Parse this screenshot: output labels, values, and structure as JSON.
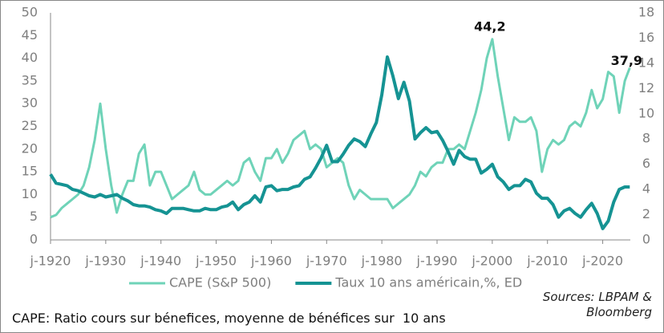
{
  "chart_data": {
    "type": "line",
    "x": [
      1920,
      1921,
      1922,
      1923,
      1924,
      1925,
      1926,
      1927,
      1928,
      1929,
      1930,
      1931,
      1932,
      1933,
      1934,
      1935,
      1936,
      1937,
      1938,
      1939,
      1940,
      1941,
      1942,
      1943,
      1944,
      1945,
      1946,
      1947,
      1948,
      1949,
      1950,
      1951,
      1952,
      1953,
      1954,
      1955,
      1956,
      1957,
      1958,
      1959,
      1960,
      1961,
      1962,
      1963,
      1964,
      1965,
      1966,
      1967,
      1968,
      1969,
      1970,
      1971,
      1972,
      1973,
      1974,
      1975,
      1976,
      1977,
      1978,
      1979,
      1980,
      1981,
      1982,
      1983,
      1984,
      1985,
      1986,
      1987,
      1988,
      1989,
      1990,
      1991,
      1992,
      1993,
      1994,
      1995,
      1996,
      1997,
      1998,
      1999,
      2000,
      2001,
      2002,
      2003,
      2004,
      2005,
      2006,
      2007,
      2008,
      2009,
      2010,
      2011,
      2012,
      2013,
      2014,
      2015,
      2016,
      2017,
      2018,
      2019,
      2020,
      2021,
      2022,
      2023,
      2024,
      2024.9
    ],
    "series": [
      {
        "name": "CAPE (S&P 500)",
        "color": "#6fd3b8",
        "axis": "y",
        "values": [
          5,
          5.5,
          7,
          8,
          9,
          10,
          12,
          16,
          22,
          30,
          20,
          12,
          6,
          10,
          13,
          13,
          19,
          21,
          12,
          15,
          15,
          12,
          9,
          10,
          11,
          12,
          15,
          11,
          10,
          10,
          11,
          12,
          13,
          12,
          13,
          17,
          18,
          15,
          13,
          18,
          18,
          20,
          17,
          19,
          22,
          23,
          24,
          20,
          21,
          20,
          16,
          17,
          18,
          17,
          12,
          9,
          11,
          10,
          9,
          9,
          9,
          9,
          7,
          8,
          9,
          10,
          12,
          15,
          14,
          16,
          17,
          17,
          20,
          20,
          21,
          20,
          24,
          28,
          33,
          40,
          44.2,
          36,
          29,
          22,
          27,
          26,
          26,
          27,
          24,
          15,
          20,
          22,
          21,
          22,
          25,
          26,
          25,
          28,
          33,
          29,
          31,
          37,
          36,
          28,
          35,
          37.9
        ]
      },
      {
        "name": "Taux 10 ans américain,%, ED",
        "color": "#159393",
        "axis": "y2",
        "values": [
          5.2,
          4.5,
          4.4,
          4.3,
          4.0,
          3.9,
          3.7,
          3.5,
          3.4,
          3.6,
          3.4,
          3.5,
          3.6,
          3.3,
          3.1,
          2.8,
          2.7,
          2.7,
          2.6,
          2.4,
          2.3,
          2.1,
          2.5,
          2.5,
          2.5,
          2.4,
          2.3,
          2.3,
          2.5,
          2.4,
          2.4,
          2.6,
          2.7,
          3.0,
          2.4,
          2.8,
          3.0,
          3.5,
          3.0,
          4.2,
          4.3,
          3.9,
          4.0,
          4.0,
          4.2,
          4.3,
          4.8,
          5.0,
          5.7,
          6.5,
          7.5,
          6.2,
          6.2,
          6.8,
          7.5,
          8.0,
          7.8,
          7.4,
          8.4,
          9.3,
          11.5,
          14.5,
          13.0,
          11.2,
          12.5,
          11.0,
          8.0,
          8.5,
          8.9,
          8.5,
          8.6,
          7.9,
          7.0,
          6.0,
          7.1,
          6.6,
          6.4,
          6.4,
          5.3,
          5.6,
          6.0,
          5.0,
          4.6,
          4.0,
          4.3,
          4.3,
          4.8,
          4.6,
          3.7,
          3.3,
          3.3,
          2.8,
          1.8,
          2.3,
          2.5,
          2.1,
          1.8,
          2.4,
          2.9,
          2.1,
          0.9,
          1.5,
          3.0,
          4.0,
          4.2,
          4.2
        ]
      }
    ],
    "xlim": [
      1920,
      2025
    ],
    "xticks": [
      {
        "value": 1920,
        "label": "j-1920"
      },
      {
        "value": 1930,
        "label": "j-1930"
      },
      {
        "value": 1940,
        "label": "j-1940"
      },
      {
        "value": 1950,
        "label": "j-1950"
      },
      {
        "value": 1960,
        "label": "j-1960"
      },
      {
        "value": 1970,
        "label": "j-1970"
      },
      {
        "value": 1980,
        "label": "j-1980"
      },
      {
        "value": 1990,
        "label": "j-1990"
      },
      {
        "value": 2000,
        "label": "j-2000"
      },
      {
        "value": 2010,
        "label": "j-2010"
      },
      {
        "value": 2020,
        "label": "j-2020"
      }
    ],
    "ylim": [
      0,
      50
    ],
    "yticks": [
      0,
      5,
      10,
      15,
      20,
      25,
      30,
      35,
      40,
      45,
      50
    ],
    "y2lim": [
      0,
      18
    ],
    "y2ticks": [
      0,
      2,
      4,
      6,
      8,
      10,
      12,
      14,
      16,
      18
    ],
    "annotations": [
      {
        "label": "44,2",
        "x": 2000,
        "value": 44.2
      },
      {
        "label": "37,9",
        "x": 2024.9,
        "value": 37.9
      }
    ],
    "source": "Sources: LBPAM & Bloomberg",
    "note": "CAPE: Ratio cours sur bénefices, moyenne de bénéfices sur  10 ans"
  }
}
